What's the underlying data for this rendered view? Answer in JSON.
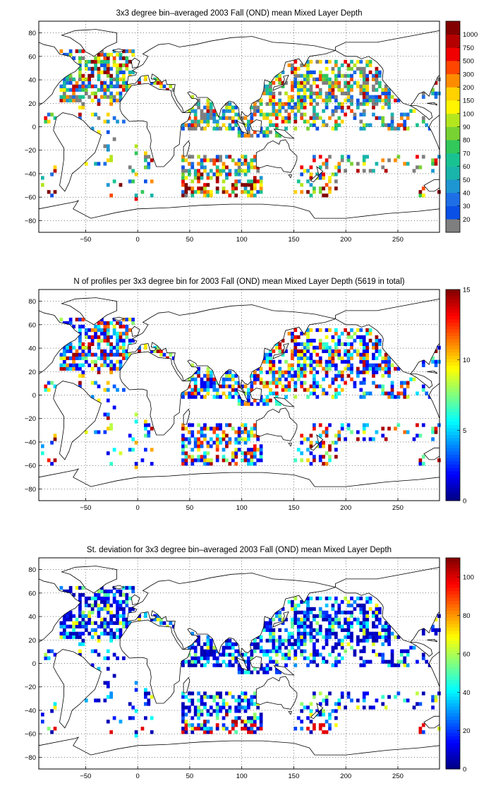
{
  "chart_data": [
    {
      "type": "heatmap",
      "title": "3x3 degree bin–averaged 2003 Fall (OND) mean Mixed Layer Depth",
      "x_ticks": [
        -50,
        0,
        50,
        100,
        150,
        200,
        250
      ],
      "y_ticks": [
        80,
        60,
        40,
        20,
        0,
        -20,
        -40,
        -60,
        -80
      ],
      "xlim": [
        -95,
        290
      ],
      "ylim": [
        -90,
        90
      ],
      "grid": true,
      "colorbar": {
        "scale": "categorical",
        "labels": [
          "20",
          "30",
          "40",
          "50",
          "60",
          "70",
          "80",
          "90",
          "100",
          "150",
          "200",
          "300",
          "500",
          "750",
          "1000"
        ],
        "colors": [
          "#7f7f7f",
          "#0a50e6",
          "#1e6ee6",
          "#1e96d2",
          "#19b4aa",
          "#19c391",
          "#32c85a",
          "#78d232",
          "#b4e61e",
          "#fff500",
          "#ffd200",
          "#ff8c00",
          "#ff4600",
          "#f00000",
          "#b40000",
          "#820000"
        ]
      }
    },
    {
      "type": "heatmap",
      "title": "N of profiles per 3x3 degree bin for 2003 Fall (OND) mean Mixed Layer Depth  (5619 in total)",
      "x_ticks": [
        -50,
        0,
        50,
        100,
        150,
        200,
        250
      ],
      "y_ticks": [
        80,
        60,
        40,
        20,
        0,
        -20,
        -40,
        -60,
        -80
      ],
      "xlim": [
        -95,
        290
      ],
      "ylim": [
        -90,
        90
      ],
      "grid": true,
      "colorbar": {
        "scale": "jet",
        "min": 0,
        "max": 15,
        "ticks": [
          0,
          5,
          10,
          15
        ]
      }
    },
    {
      "type": "heatmap",
      "title": "St. deviation for 3x3 degree bin–averaged 2003 Fall (OND) mean Mixed Layer Depth",
      "x_ticks": [
        -50,
        0,
        50,
        100,
        150,
        200,
        250
      ],
      "y_ticks": [
        80,
        60,
        40,
        20,
        0,
        -20,
        -40,
        -60,
        -80
      ],
      "xlim": [
        -95,
        290
      ],
      "ylim": [
        -90,
        90
      ],
      "grid": true,
      "colorbar": {
        "scale": "jet",
        "min": 0,
        "max": 110,
        "ticks": [
          0,
          20,
          40,
          60,
          80,
          100
        ]
      }
    }
  ]
}
